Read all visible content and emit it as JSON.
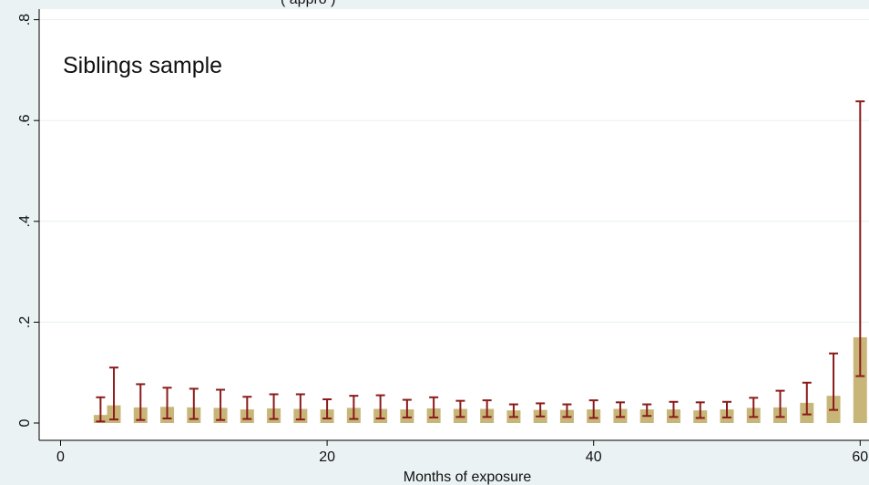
{
  "chart_data": {
    "type": "bar",
    "top_caption": "(                                                          appro                   )",
    "annotation": "Siblings sample",
    "xlabel": "Months of exposure",
    "ylabel": "",
    "xlim": [
      0,
      61
    ],
    "ylim": [
      0,
      0.8
    ],
    "x_ticks": [
      0,
      20,
      40,
      60
    ],
    "y_ticks": [
      0,
      0.2,
      0.4,
      0.6,
      0.8
    ],
    "y_tick_labels": [
      "0",
      ".2",
      ".4",
      ".6",
      ".8"
    ],
    "grid": true,
    "colors": {
      "bar": "#c8b679",
      "errorbar": "#8b1a1a",
      "grid": "#e8f0f0",
      "plot_bg": "#ffffff",
      "page_bg": "#eaf2f3"
    },
    "bars": [
      {
        "x": 3,
        "value": 0.016
      },
      {
        "x": 4,
        "value": 0.035
      },
      {
        "x": 6,
        "value": 0.031
      },
      {
        "x": 8,
        "value": 0.032
      },
      {
        "x": 10,
        "value": 0.031
      },
      {
        "x": 12,
        "value": 0.03
      },
      {
        "x": 14,
        "value": 0.027
      },
      {
        "x": 16,
        "value": 0.029
      },
      {
        "x": 18,
        "value": 0.028
      },
      {
        "x": 20,
        "value": 0.027
      },
      {
        "x": 22,
        "value": 0.03
      },
      {
        "x": 24,
        "value": 0.028
      },
      {
        "x": 26,
        "value": 0.027
      },
      {
        "x": 28,
        "value": 0.029
      },
      {
        "x": 30,
        "value": 0.028
      },
      {
        "x": 32,
        "value": 0.028
      },
      {
        "x": 34,
        "value": 0.025
      },
      {
        "x": 36,
        "value": 0.026
      },
      {
        "x": 38,
        "value": 0.026
      },
      {
        "x": 40,
        "value": 0.027
      },
      {
        "x": 42,
        "value": 0.028
      },
      {
        "x": 44,
        "value": 0.027
      },
      {
        "x": 46,
        "value": 0.027
      },
      {
        "x": 48,
        "value": 0.025
      },
      {
        "x": 50,
        "value": 0.027
      },
      {
        "x": 52,
        "value": 0.03
      },
      {
        "x": 54,
        "value": 0.031
      },
      {
        "x": 56,
        "value": 0.04
      },
      {
        "x": 58,
        "value": 0.054
      },
      {
        "x": 60,
        "value": 0.17
      }
    ],
    "error_bars": [
      {
        "x": 3,
        "low": 0.003,
        "high": 0.051
      },
      {
        "x": 4,
        "low": 0.007,
        "high": 0.11
      },
      {
        "x": 6,
        "low": 0.006,
        "high": 0.077
      },
      {
        "x": 8,
        "low": 0.009,
        "high": 0.07
      },
      {
        "x": 10,
        "low": 0.008,
        "high": 0.068
      },
      {
        "x": 12,
        "low": 0.006,
        "high": 0.066
      },
      {
        "x": 14,
        "low": 0.008,
        "high": 0.052
      },
      {
        "x": 16,
        "low": 0.008,
        "high": 0.057
      },
      {
        "x": 18,
        "low": 0.007,
        "high": 0.057
      },
      {
        "x": 20,
        "low": 0.009,
        "high": 0.047
      },
      {
        "x": 22,
        "low": 0.008,
        "high": 0.054
      },
      {
        "x": 24,
        "low": 0.009,
        "high": 0.055
      },
      {
        "x": 26,
        "low": 0.011,
        "high": 0.046
      },
      {
        "x": 28,
        "low": 0.011,
        "high": 0.051
      },
      {
        "x": 30,
        "low": 0.012,
        "high": 0.044
      },
      {
        "x": 32,
        "low": 0.012,
        "high": 0.045
      },
      {
        "x": 34,
        "low": 0.012,
        "high": 0.037
      },
      {
        "x": 36,
        "low": 0.013,
        "high": 0.039
      },
      {
        "x": 38,
        "low": 0.012,
        "high": 0.037
      },
      {
        "x": 40,
        "low": 0.01,
        "high": 0.045
      },
      {
        "x": 42,
        "low": 0.012,
        "high": 0.041
      },
      {
        "x": 44,
        "low": 0.014,
        "high": 0.037
      },
      {
        "x": 46,
        "low": 0.012,
        "high": 0.042
      },
      {
        "x": 48,
        "low": 0.01,
        "high": 0.041
      },
      {
        "x": 50,
        "low": 0.011,
        "high": 0.042
      },
      {
        "x": 52,
        "low": 0.012,
        "high": 0.05
      },
      {
        "x": 54,
        "low": 0.012,
        "high": 0.064
      },
      {
        "x": 56,
        "low": 0.017,
        "high": 0.08
      },
      {
        "x": 58,
        "low": 0.026,
        "high": 0.138
      },
      {
        "x": 60,
        "low": 0.093,
        "high": 0.638
      }
    ]
  }
}
